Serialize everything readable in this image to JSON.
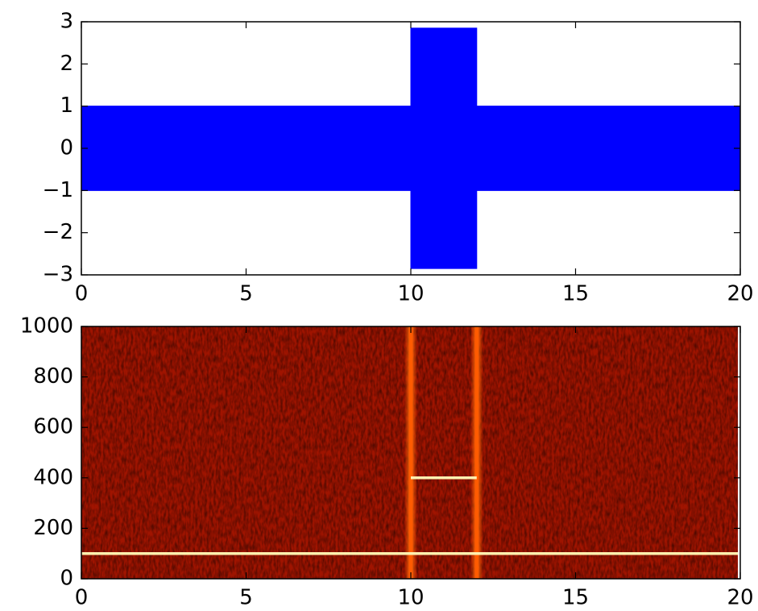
{
  "chart_data": [
    {
      "type": "band",
      "x": [
        0,
        10,
        10,
        12,
        12,
        20
      ],
      "upper": [
        1,
        1,
        2.85,
        2.85,
        1,
        1
      ],
      "lower": [
        -1,
        -1,
        -2.85,
        -2.85,
        -1,
        -1
      ],
      "color": "#0000ff",
      "xlim": [
        0,
        20
      ],
      "xticks": [
        0,
        5,
        10,
        15,
        20
      ],
      "ylim": [
        -3,
        3
      ],
      "yticks": [
        {
          "value": -3,
          "label": "−3"
        },
        {
          "value": -2,
          "label": "−2"
        },
        {
          "value": -1,
          "label": "−1"
        },
        0,
        1,
        2,
        3
      ]
    },
    {
      "type": "spectrogram",
      "background_color": "#a01400",
      "tones": [
        {
          "x": [
            0,
            20
          ],
          "y": 100
        },
        {
          "x": [
            10,
            12
          ],
          "y": 400
        }
      ],
      "tone_color": "#fff0b0",
      "bursts": [
        10,
        12
      ],
      "burst_color": "#ff5a00",
      "xlim": [
        0,
        20
      ],
      "xticks": [
        0,
        5,
        10,
        15,
        20
      ],
      "ylim": [
        0,
        1000
      ],
      "yticks": [
        0,
        200,
        400,
        600,
        800,
        1000
      ]
    }
  ]
}
